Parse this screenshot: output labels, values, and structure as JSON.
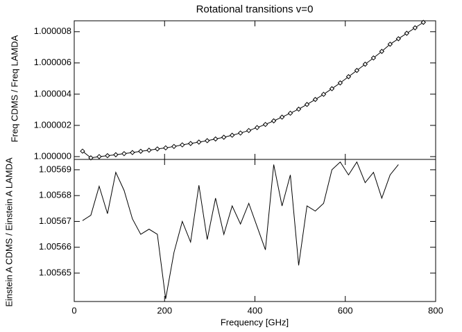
{
  "chart_data": [
    {
      "type": "line",
      "title": "Rotational transitions v=0",
      "ylabel": "Freq CDMS / Freq LAMDA",
      "marker": "diamond",
      "color": "#000000",
      "x": [
        18.4,
        36.8,
        55.2,
        73.6,
        92,
        110.4,
        128.8,
        147.2,
        165.6,
        184,
        202.4,
        220.8,
        239.2,
        257.6,
        276,
        294.4,
        312.8,
        331.2,
        349.6,
        368,
        386.4,
        404.8,
        423.2,
        441.6,
        460,
        478.4,
        496.8,
        515.2,
        533.6,
        552,
        570.4,
        588.8,
        607.2,
        625.6,
        644,
        662.4,
        680.8,
        699.2,
        717.6,
        736,
        754.4,
        772.8
      ],
      "values": [
        1.00000035,
        0.99999992,
        1.0,
        1.00000006,
        1.00000012,
        1.00000019,
        1.00000026,
        1.00000034,
        1.00000041,
        1.00000049,
        1.00000056,
        1.00000065,
        1.00000075,
        1.00000084,
        1.00000093,
        1.00000102,
        1.00000113,
        1.00000124,
        1.00000137,
        1.00000151,
        1.00000167,
        1.00000186,
        1.00000206,
        1.00000229,
        1.00000253,
        1.00000278,
        1.00000304,
        1.00000334,
        1.00000366,
        1.00000399,
        1.00000435,
        1.00000472,
        1.00000512,
        1.00000552,
        1.00000592,
        1.00000632,
        1.00000674,
        1.0000072,
        1.00000755,
        1.0000079,
        1.00000825,
        1.0000086
      ],
      "xlim": [
        0,
        800
      ],
      "xticks": [
        0,
        200,
        400,
        600,
        800
      ],
      "ylim": [
        0.99999982,
        1.0000087
      ],
      "yticks": [
        {
          "value": 1.0,
          "label": "1.000000"
        },
        {
          "value": 1.000002,
          "label": "1.000002"
        },
        {
          "value": 1.000004,
          "label": "1.000004"
        },
        {
          "value": 1.000006,
          "label": "1.000006"
        },
        {
          "value": 1.000008,
          "label": "1.000008"
        }
      ]
    },
    {
      "type": "line",
      "xlabel": "Frequency [GHz]",
      "ylabel": "Einstein A CDMS / Einstein A LAMDA",
      "color": "#000000",
      "x": [
        18.4,
        36.8,
        55.2,
        73.6,
        92,
        110.4,
        128.8,
        147.2,
        165.6,
        184,
        202.4,
        220.8,
        239.2,
        257.6,
        276,
        294.4,
        312.8,
        331.2,
        349.6,
        368,
        386.4,
        404.8,
        423.2,
        441.6,
        460,
        478.4,
        496.8,
        515.2,
        533.6,
        552,
        570.4,
        588.8,
        607.2,
        625.6,
        644,
        662.4,
        680.8,
        699.2,
        717.6
      ],
      "values": [
        1.0056703,
        1.0056724,
        1.0056836,
        1.005673,
        1.005689,
        1.005682,
        1.005671,
        1.005665,
        1.005667,
        1.005665,
        1.00564,
        1.005658,
        1.00567,
        1.005662,
        1.005684,
        1.005663,
        1.005679,
        1.005665,
        1.005676,
        1.005669,
        1.005677,
        1.005668,
        1.005659,
        1.005692,
        1.005676,
        1.005688,
        1.005653,
        1.005676,
        1.005674,
        1.005677,
        1.00569,
        1.005693,
        1.005688,
        1.005693,
        1.005685,
        1.005689,
        1.005679,
        1.005688,
        1.005692
      ],
      "xlim": [
        0,
        800
      ],
      "xticks": [
        0,
        200,
        400,
        600,
        800
      ],
      "ylim": [
        1.005639,
        1.005694
      ],
      "yticks": [
        1.00565,
        1.00566,
        1.00567,
        1.00568,
        1.00569
      ]
    }
  ]
}
